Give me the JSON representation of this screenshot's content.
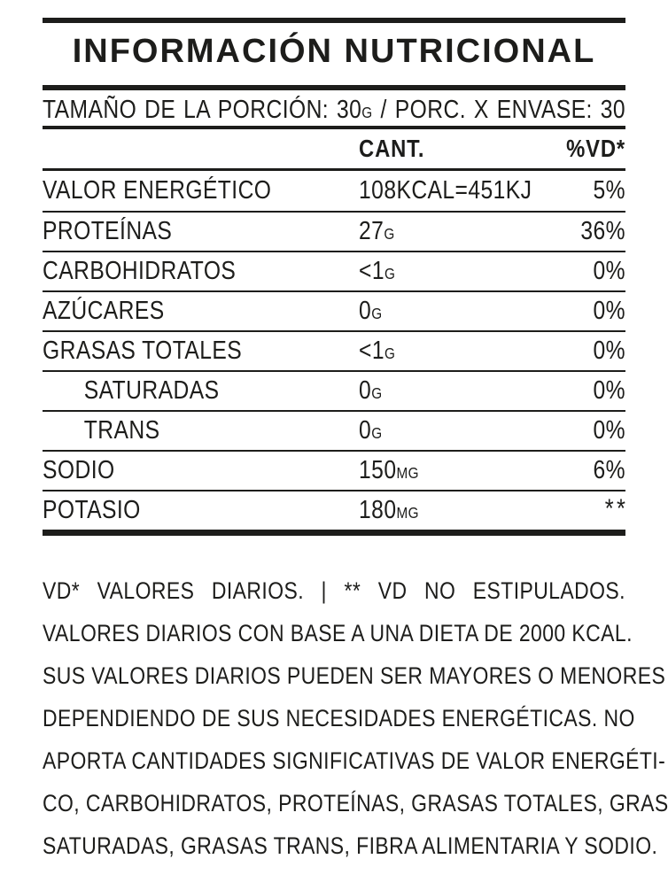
{
  "colors": {
    "ink": "#1d1d1b",
    "background": "#ffffff"
  },
  "title": "INFORMACIÓN NUTRICIONAL",
  "serving": {
    "part1": "TAMAÑO DE LA PORCIÓN: 30",
    "unit1": "G",
    "part2": " / PORC. X ENVASE: 30"
  },
  "table": {
    "header": {
      "amount": "CANT.",
      "dv": "%VD*"
    },
    "rows": [
      {
        "label": "VALOR ENERGÉTICO",
        "amount": "108KCAL=451KJ",
        "unit": "",
        "dv": "5%",
        "indent": false
      },
      {
        "label": "PROTEÍNAS",
        "amount": "27",
        "unit": "G",
        "dv": "36%",
        "indent": false
      },
      {
        "label": "CARBOHIDRATOS",
        "amount": "<1",
        "unit": "G",
        "dv": "0%",
        "indent": false
      },
      {
        "label": "AZÚCARES",
        "amount": "0",
        "unit": "G",
        "dv": "0%",
        "indent": false
      },
      {
        "label": "GRASAS TOTALES",
        "amount": "<1",
        "unit": "G",
        "dv": "0%",
        "indent": false
      },
      {
        "label": "SATURADAS",
        "amount": "0",
        "unit": "G",
        "dv": "0%",
        "indent": true
      },
      {
        "label": "TRANS",
        "amount": "0",
        "unit": "G",
        "dv": "0%",
        "indent": true
      },
      {
        "label": "SODIO",
        "amount": "150",
        "unit": "MG",
        "dv": "6%",
        "indent": false
      },
      {
        "label": "POTASIO",
        "amount": "180",
        "unit": "MG",
        "dv": "**",
        "indent": false
      }
    ]
  },
  "footnote": {
    "lines": [
      "VD* VALORES DIARIOS. | ** VD NO ESTIPULADOS.",
      "VALORES DIARIOS CON BASE A UNA DIETA DE 2000 KCAL.",
      "SUS VALORES DIARIOS PUEDEN SER MAYORES O MENORES",
      "DEPENDIENDO DE SUS NECESIDADES ENERGÉTICAS. NO",
      "APORTA CANTIDADES SIGNIFICATIVAS DE VALOR ENERGÉTI-",
      "CO, CARBOHIDRATOS, PROTEÍNAS, GRASAS TOTALES, GRASAS",
      "SATURADAS, GRASAS TRANS, FIBRA ALIMENTARIA Y SODIO."
    ]
  }
}
